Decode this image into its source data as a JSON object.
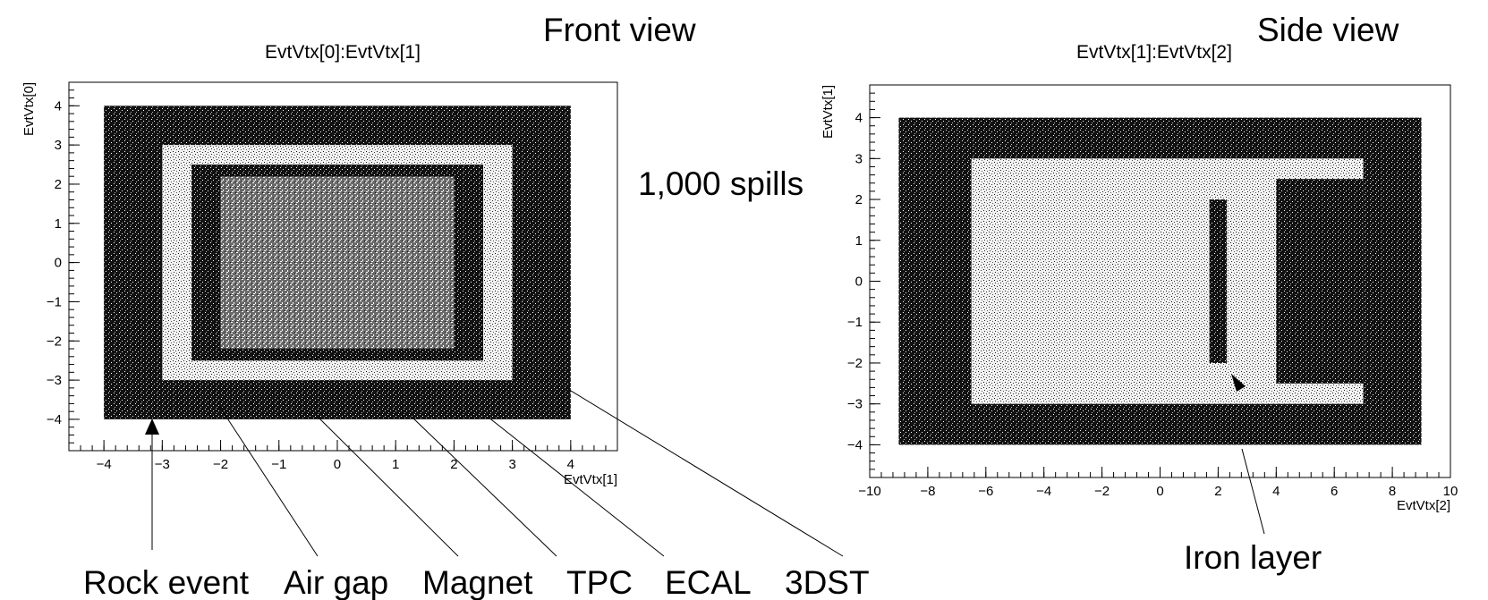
{
  "annotations": {
    "front_view": "Front view",
    "side_view": "Side view",
    "spills": "1,000 spills",
    "iron_layer": "Iron layer",
    "components": [
      "Rock event",
      "Air gap",
      "Magnet",
      "TPC",
      "ECAL",
      "3DST"
    ]
  },
  "chart_data": [
    {
      "type": "scatter",
      "title": "EvtVtx[0]:EvtVtx[1]",
      "xlabel": "EvtVtx[1]",
      "ylabel": "EvtVtx[0]",
      "xlim": [
        -4.6,
        4.8
      ],
      "ylim": [
        -4.8,
        4.6
      ],
      "xticks": [
        -4,
        -3,
        -2,
        -1,
        0,
        1,
        2,
        3,
        4
      ],
      "yticks": [
        -4,
        -3,
        -2,
        -1,
        0,
        1,
        2,
        3,
        4
      ],
      "regions": [
        {
          "label": "Rock event",
          "x": [
            -4,
            4
          ],
          "y": [
            -4,
            4
          ],
          "density": "high"
        },
        {
          "label": "Air gap",
          "x": [
            -3,
            3
          ],
          "y": [
            -3,
            3
          ],
          "density": "low"
        },
        {
          "label": "Magnet",
          "x": [
            -2.5,
            2.5
          ],
          "y": [
            -2.5,
            2.5
          ],
          "density": "high"
        },
        {
          "label": "TPC",
          "x": [
            -2,
            2
          ],
          "y": [
            -2.2,
            2.2
          ],
          "density": "medium"
        }
      ],
      "grid": false
    },
    {
      "type": "scatter",
      "title": "EvtVtx[1]:EvtVtx[2]",
      "xlabel": "EvtVtx[2]",
      "ylabel": "EvtVtx[1]",
      "xlim": [
        -10,
        10
      ],
      "ylim": [
        -4.8,
        4.8
      ],
      "xticks": [
        -10,
        -8,
        -6,
        -4,
        -2,
        0,
        2,
        4,
        6,
        8,
        10
      ],
      "yticks": [
        -4,
        -3,
        -2,
        -1,
        0,
        1,
        2,
        3,
        4
      ],
      "regions": [
        {
          "label": "Rock event",
          "x": [
            -9,
            9
          ],
          "y": [
            -4,
            4
          ],
          "density": "high"
        },
        {
          "label": "Air gap",
          "x": [
            -6.5,
            7
          ],
          "y": [
            -3,
            3
          ],
          "density": "low"
        },
        {
          "label": "Iron layer",
          "x": [
            1.7,
            2.3
          ],
          "y": [
            -2,
            2
          ],
          "density": "high"
        },
        {
          "label": "ECAL",
          "x": [
            4,
            7
          ],
          "y": [
            -2.5,
            2.5
          ],
          "density": "high"
        }
      ],
      "grid": false
    }
  ]
}
